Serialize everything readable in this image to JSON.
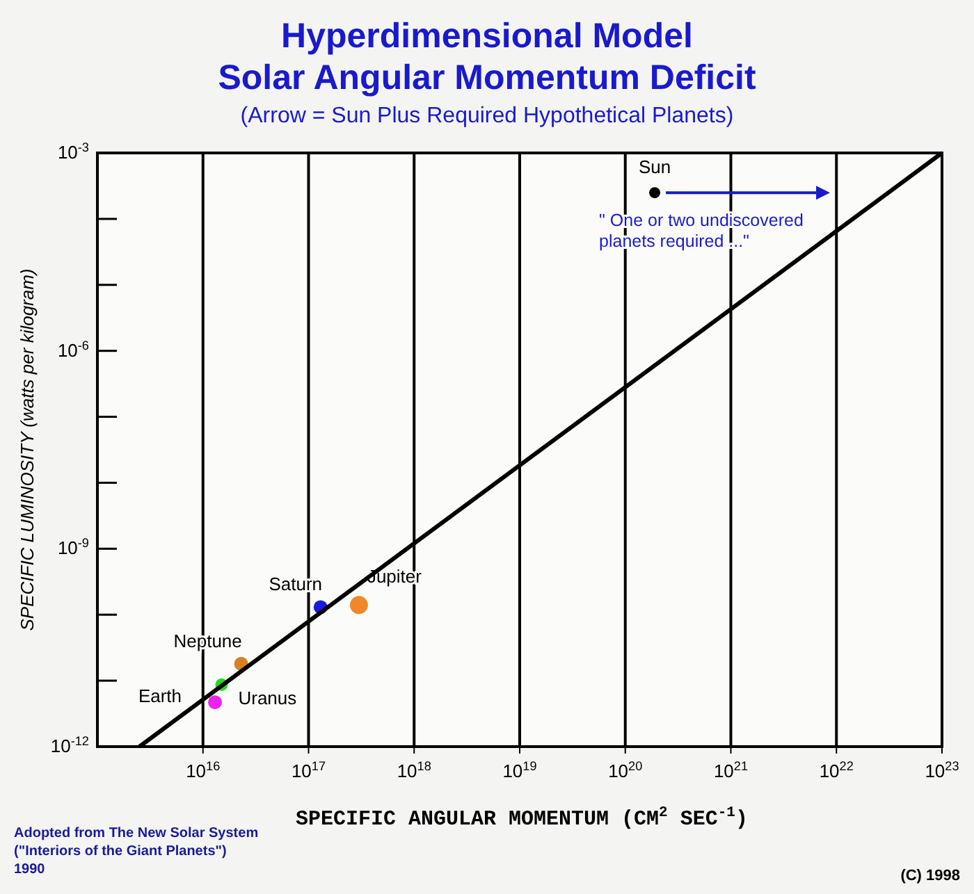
{
  "chart_data": {
    "type": "scatter",
    "title": "Hyperdimensional Model\nSolar Angular Momentum Deficit",
    "subtitle": "(Arrow = Sun Plus Required Hypothetical Planets)",
    "xlabel": "SPECIFIC ANGULAR MOMENTUM (CM$^{2}$ SEC$^{-1}$)",
    "ylabel": "SPECIFIC  LUMINOSITY  (watts per kilogram)",
    "log": "xy",
    "grid": "x",
    "marker": "circle",
    "xlim": [
      1000000000000000.0,
      1e+23
    ],
    "ylim": [
      1e-12,
      0.001
    ],
    "xticks": [
      {
        "value": 1e+16,
        "label": "10$^{16}$"
      },
      {
        "value": 1e+17,
        "label": "10$^{17}$"
      },
      {
        "value": 1e+18,
        "label": "10$^{18}$"
      },
      {
        "value": 1e+19,
        "label": "10$^{19}$"
      },
      {
        "value": 1e+20,
        "label": "10$^{20}$"
      },
      {
        "value": 1e+21,
        "label": "10$^{21}$"
      },
      {
        "value": 1e+22,
        "label": "10$^{22}$"
      },
      {
        "value": 1e+23,
        "label": "10$^{23}$"
      }
    ],
    "yticks": [
      {
        "value": 1e-12,
        "label": "10$^{-12}$"
      },
      {
        "value": 1e-11,
        "label": null
      },
      {
        "value": 1e-10,
        "label": null
      },
      {
        "value": 1e-09,
        "label": "10$^{-9}$"
      },
      {
        "value": 1e-08,
        "label": null
      },
      {
        "value": 1e-07,
        "label": null
      },
      {
        "value": 1e-06,
        "label": "10$^{-6}$"
      },
      {
        "value": 1e-05,
        "label": null
      },
      {
        "value": 0.0001,
        "label": null
      },
      {
        "value": 0.001,
        "label": "10$^{-3}$"
      }
    ],
    "series": [
      {
        "name": "Sun",
        "color": "#000000",
        "x": [
          1.9e+20
        ],
        "values": [
          0.00025
        ]
      },
      {
        "name": "Saturn",
        "color": "#1a1ae0",
        "x": [
          1.3e+17
        ],
        "values": [
          1.3e-10
        ]
      },
      {
        "name": "Jupiter",
        "color": "#f0882a",
        "x": [
          3e+17
        ],
        "values": [
          1.4e-10
        ]
      },
      {
        "name": "Neptune",
        "color": "#d4831f",
        "x": [
          2.3e+16
        ],
        "values": [
          1.8e-11
        ]
      },
      {
        "name": "Uranus",
        "color": "#22dd22",
        "x": [
          1.5e+16
        ],
        "values": [
          8.7e-12
        ]
      },
      {
        "name": "Earth",
        "color": "#ee22ee",
        "x": [
          1.3e+16
        ],
        "values": [
          4.7e-12
        ]
      },
      {
        "type": "line",
        "color": "#000000",
        "marker": "none",
        "x": [
          2500000000000000.0,
          1e+23
        ],
        "values": [
          1e-12,
          0.001
        ]
      }
    ],
    "annotations": [
      "\" One or two undiscovered planets required ...\"",
      "Adopted from The New Solar System (\"Interiors of the Giant Planets\") 1990",
      "(C) 1998"
    ]
  }
}
